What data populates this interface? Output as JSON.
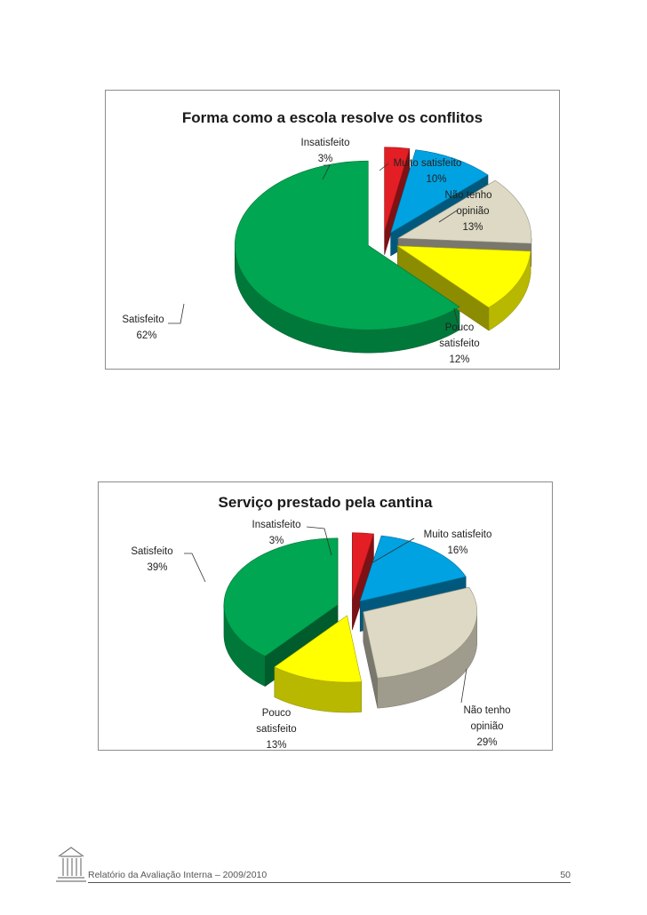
{
  "chart_data": [
    {
      "type": "pie",
      "title": "Forma como a escola resolve os conflitos",
      "series": [
        {
          "label": "Insatisfeito",
          "value": 3,
          "value_label": "3%",
          "color": "#e31e24"
        },
        {
          "label": "Muito satisfeito",
          "value": 10,
          "value_label": "10%",
          "color": "#00a2e2"
        },
        {
          "label": "Não tenho opinião",
          "value": 13,
          "value_label": "13%",
          "color": "#ddd9c4"
        },
        {
          "label": "Pouco satisfeito",
          "value": 12,
          "value_label": "12%",
          "color": "#ffff00"
        },
        {
          "label": "Satisfeito",
          "value": 62,
          "value_label": "62%",
          "color": "#00a651"
        }
      ]
    },
    {
      "type": "pie",
      "title": "Serviço prestado pela cantina",
      "series": [
        {
          "label": "Insatisfeito",
          "value": 3,
          "value_label": "3%",
          "color": "#e31e24"
        },
        {
          "label": "Muito satisfeito",
          "value": 16,
          "value_label": "16%",
          "color": "#00a2e2"
        },
        {
          "label": "Não tenho opinião",
          "value": 29,
          "value_label": "29%",
          "color": "#ddd9c4"
        },
        {
          "label": "Pouco satisfeito",
          "value": 13,
          "value_label": "13%",
          "color": "#ffff00"
        },
        {
          "label": "Satisfeito",
          "value": 39,
          "value_label": "39%",
          "color": "#00a651"
        }
      ]
    }
  ],
  "footer": {
    "text": "Relatório da Avaliação Interna – 2009/2010",
    "page": "50"
  }
}
